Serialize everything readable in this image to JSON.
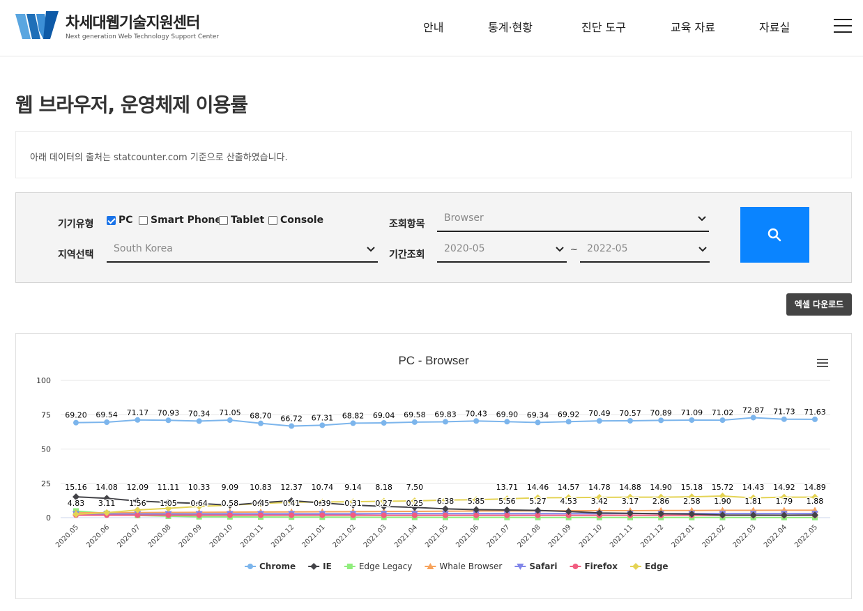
{
  "header": {
    "logo_kr": "차세대웹기술지원센터",
    "logo_en": "Next generation Web Technology Support Center",
    "nav": [
      {
        "label": "안내"
      },
      {
        "label": "통계·현황"
      },
      {
        "label": "진단 도구"
      },
      {
        "label": "교육 자료"
      },
      {
        "label": "자료실"
      }
    ],
    "menu_icon": "hamburger-icon"
  },
  "page": {
    "title": "웹 브라우저, 운영체제 이용률",
    "notice": "아래 데이터의 출처는 statcounter.com 기준으로 산출하였습니다."
  },
  "filter": {
    "device_label": "기기유형",
    "devices": [
      {
        "label": "PC",
        "checked": true
      },
      {
        "label": "Smart Phone",
        "checked": false
      },
      {
        "label": "Tablet",
        "checked": false
      },
      {
        "label": "Console",
        "checked": false
      }
    ],
    "item_label": "조회항목",
    "item_value": "Browser",
    "region_label": "지역선택",
    "region_value": "South Korea",
    "period_label": "기간조회",
    "period_from": "2020-05",
    "period_sep": "~",
    "period_to": "2022-05",
    "search_icon": "search-icon",
    "accent": "#0a84ff"
  },
  "excel_button": "엑셀 다운로드",
  "chart_data": {
    "type": "line",
    "title": "PC - Browser",
    "ylim": [
      0,
      100
    ],
    "yticks": [
      0,
      25,
      50,
      75,
      100
    ],
    "grid": true,
    "legend_position": "bottom",
    "categories": [
      "2020.05",
      "2020.06",
      "2020.07",
      "2020.08",
      "2020.09",
      "2020.10",
      "2020.11",
      "2020.12",
      "2021.01",
      "2021.02",
      "2021.03",
      "2021.04",
      "2021.05",
      "2021.06",
      "2021.07",
      "2021.08",
      "2021.09",
      "2021.10",
      "2021.11",
      "2021.12",
      "2022.01",
      "2022.02",
      "2022.03",
      "2022.04",
      "2022.05"
    ],
    "series": [
      {
        "name": "Chrome",
        "color": "#7cb5ec",
        "marker": "circle",
        "labels": true,
        "values": [
          69.2,
          69.54,
          71.17,
          70.93,
          70.34,
          71.05,
          68.7,
          66.72,
          67.31,
          68.82,
          69.04,
          69.58,
          69.83,
          70.43,
          69.9,
          69.34,
          69.92,
          70.49,
          70.57,
          70.89,
          71.09,
          71.02,
          72.87,
          71.73,
          71.63
        ]
      },
      {
        "name": "IE",
        "color": "#434348",
        "marker": "diamond",
        "labels": true,
        "values": [
          15.16,
          14.08,
          12.09,
          11.11,
          10.33,
          9.09,
          10.83,
          12.37,
          10.74,
          9.14,
          8.18,
          7.5,
          6.38,
          5.85,
          5.56,
          5.27,
          4.53,
          3.42,
          3.17,
          2.86,
          2.58,
          1.9,
          1.81,
          1.79,
          1.88
        ]
      },
      {
        "name": "Edge Legacy",
        "color": "#90ed7d",
        "marker": "square",
        "labels": false,
        "values": [
          4.83,
          3.11,
          1.56,
          1.05,
          0.64,
          0.58,
          0.45,
          0.41,
          0.39,
          0.31,
          0.27,
          0.25,
          0.2,
          0.18,
          0.16,
          0.15,
          0.14,
          0.13,
          0.12,
          0.11,
          0.1,
          0.1,
          0.09,
          0.09,
          0.08
        ]
      },
      {
        "name": "Whale Browser",
        "color": "#f7a35c",
        "marker": "triangle",
        "labels": false,
        "values": [
          3.5,
          3.6,
          3.7,
          3.8,
          3.9,
          4.0,
          4.1,
          4.2,
          4.3,
          4.4,
          4.5,
          4.6,
          4.7,
          4.8,
          4.9,
          5.0,
          5.0,
          5.1,
          5.1,
          5.2,
          5.2,
          5.3,
          5.3,
          5.4,
          5.4
        ]
      },
      {
        "name": "Safari",
        "color": "#8085e9",
        "marker": "triangle-down",
        "labels": false,
        "values": [
          2.6,
          2.6,
          2.7,
          2.7,
          2.7,
          2.8,
          2.8,
          2.8,
          2.8,
          2.8,
          2.9,
          2.9,
          2.9,
          2.9,
          2.9,
          2.9,
          2.9,
          2.9,
          3.0,
          3.0,
          3.0,
          3.0,
          3.0,
          3.0,
          3.0
        ]
      },
      {
        "name": "Firefox",
        "color": "#f15c80",
        "marker": "circle",
        "labels": false,
        "values": [
          1.8,
          1.8,
          1.8,
          1.8,
          1.8,
          1.8,
          1.8,
          1.8,
          1.8,
          1.8,
          1.7,
          1.7,
          1.7,
          1.7,
          1.7,
          1.7,
          1.7,
          1.7,
          1.7,
          1.7,
          1.7,
          1.7,
          1.7,
          1.7,
          1.7
        ]
      },
      {
        "name": "Edge",
        "color": "#e4d354",
        "marker": "diamond",
        "labels": false,
        "values": [
          2.5,
          3.6,
          5.6,
          6.8,
          8.2,
          9.1,
          10.3,
          11.2,
          11.4,
          11.6,
          11.9,
          12.2,
          12.8,
          13.1,
          13.71,
          14.46,
          14.57,
          14.78,
          14.88,
          14.9,
          15.18,
          15.72,
          14.43,
          14.92,
          14.89
        ]
      }
    ],
    "lower_row_labels": [
      "4.83",
      "3.11",
      "1.56",
      "1.05",
      "0.64",
      "0.58",
      "0.45",
      "0.41",
      "0.39",
      "0.31",
      "0.27",
      "0.25",
      "6.38",
      "5.85",
      "5.56",
      "5.27",
      "4.53",
      "3.42",
      "3.17",
      "2.86",
      "2.58",
      "1.90",
      "1.81",
      "1.79",
      "1.88"
    ],
    "upper_row_labels": [
      "15.16",
      "14.08",
      "12.09",
      "11.11",
      "10.33",
      "9.09",
      "10.83",
      "12.37",
      "10.74",
      "9.14",
      "8.18",
      "7.50",
      "",
      "",
      "13.71",
      "14.46",
      "14.57",
      "14.78",
      "14.88",
      "14.90",
      "15.18",
      "15.72",
      "14.43",
      "14.92",
      "14.89"
    ]
  }
}
